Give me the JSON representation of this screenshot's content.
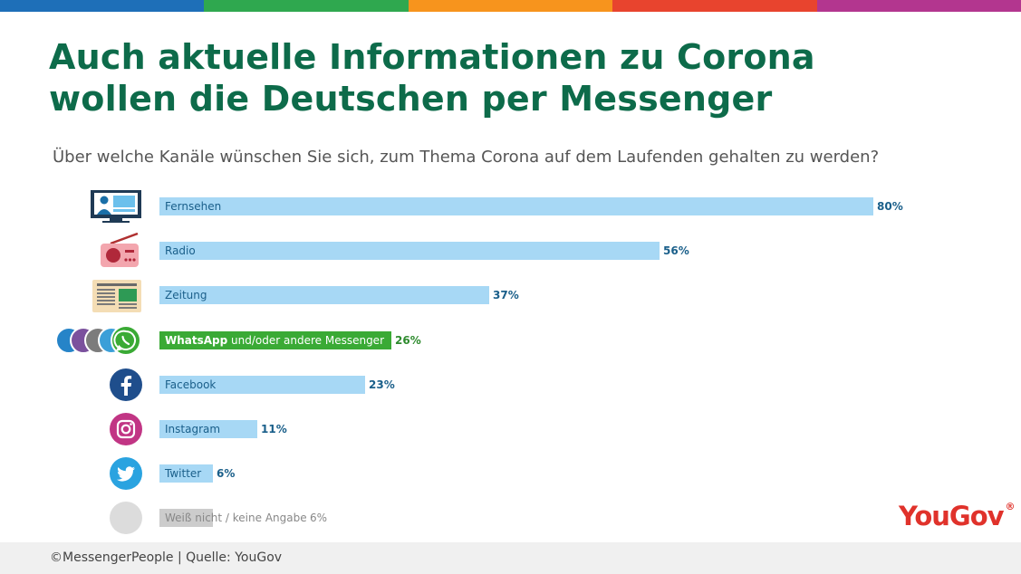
{
  "header": {
    "title_line1": "Auch aktuelle Informationen zu Corona",
    "title_line2": "wollen die Deutschen per Messenger",
    "subtitle": "Über welche Kanäle wünschen Sie sich, zum Thema Corona auf dem Laufenden gehalten zu werden?",
    "stripe_colors": [
      "#1e6fb8",
      "#2fa84f",
      "#f7941d",
      "#e8442e",
      "#b3368f"
    ]
  },
  "colors": {
    "title": "#0d6b4a",
    "bar": "#a7d8f5",
    "bar_text": "#1a5f8a",
    "highlight_bar": "#3aaa35",
    "highlight_pct": "#2e8b2e",
    "neutral_bar": "#cccccc",
    "neutral_text": "#888888",
    "yougov": "#e0322b"
  },
  "chart_data": {
    "type": "bar",
    "orientation": "horizontal",
    "title": "Auch aktuelle Informationen zu Corona wollen die Deutschen per Messenger",
    "categories": [
      "Fernsehen",
      "Radio",
      "Zeitung",
      "WhatsApp und/oder andere Messenger",
      "Facebook",
      "Instagram",
      "Twitter",
      "Weiß nicht / keine Angabe"
    ],
    "values": [
      80,
      56,
      37,
      26,
      23,
      11,
      6,
      6
    ],
    "value_labels": [
      "80%",
      "56%",
      "37%",
      "26%",
      "23%",
      "11%",
      "6%",
      "6%"
    ],
    "highlight": "WhatsApp und/oder andere Messenger",
    "xlim": [
      0,
      100
    ],
    "grid": false,
    "legend": "none"
  },
  "bars": [
    {
      "label": "Fernsehen",
      "value": 80,
      "pct": "80%",
      "icon": "tv-icon",
      "style": "normal"
    },
    {
      "label": "Radio",
      "value": 56,
      "pct": "56%",
      "icon": "radio-icon",
      "style": "normal"
    },
    {
      "label": "Zeitung",
      "value": 37,
      "pct": "37%",
      "icon": "newspaper-icon",
      "style": "normal"
    },
    {
      "label": "WhatsApp und/oder andere Messenger",
      "label_bold": "WhatsApp",
      "label_rest": " und/oder andere Messenger",
      "value": 26,
      "pct": "26%",
      "icon": "messenger-apps-icon",
      "style": "highlight"
    },
    {
      "label": "Facebook",
      "value": 23,
      "pct": "23%",
      "icon": "facebook-icon",
      "style": "normal"
    },
    {
      "label": "Instagram",
      "value": 11,
      "pct": "11%",
      "icon": "instagram-icon",
      "style": "normal"
    },
    {
      "label": "Twitter",
      "value": 6,
      "pct": "6%",
      "icon": "twitter-icon",
      "style": "normal"
    },
    {
      "label": "Weiß nicht / keine Angabe",
      "value": 6,
      "pct": "6%",
      "icon": "blank-circle-icon",
      "style": "neutral"
    }
  ],
  "logo": {
    "text": "YouGov",
    "mark": "®"
  },
  "footer": {
    "text": "©MessengerPeople  | Quelle: YouGov"
  }
}
